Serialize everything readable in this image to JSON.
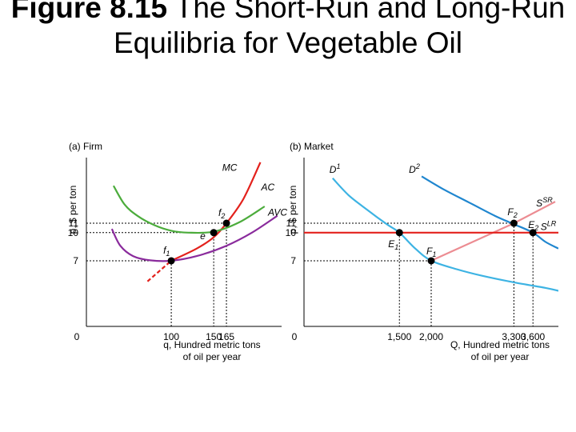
{
  "slide": {
    "title_bold": "Figure 8.15",
    "title_rest": "The Short-Run and Long-Run Equilibria for Vegetable Oil"
  },
  "colors": {
    "red": "#e3211c",
    "green": "#4cac3c",
    "purple": "#8a2b9c",
    "light_blue": "#3db3e3",
    "dark_blue": "#1f86cf",
    "pink": "#ec8c92",
    "axis": "#000000"
  },
  "chart_data": [
    {
      "type": "line",
      "panel_label": "(a) Firm",
      "ylabel": "p, $ per ton",
      "xlabel_line1": "q, Hundred metric tons",
      "xlabel_line2": "of oil per year",
      "x_ticks": [
        "0",
        "100",
        "150",
        "165"
      ],
      "y_ticks": [
        "7",
        "10",
        "11"
      ],
      "xlim": [
        0,
        230
      ],
      "ylim": [
        0,
        18
      ],
      "series": [
        {
          "name": "MC",
          "color_key": "red",
          "x": [
            100,
            130,
            150,
            165,
            185,
            205
          ],
          "y": [
            7,
            8.3,
            9.5,
            11,
            13.6,
            17.5
          ]
        },
        {
          "name": "AC",
          "color_key": "green",
          "x": [
            32,
            45,
            60,
            80,
            100,
            120,
            150,
            180,
            210
          ],
          "y": [
            15,
            13,
            11.8,
            10.8,
            10.2,
            10.0,
            10.1,
            11.1,
            12.8
          ]
        },
        {
          "name": "AVC",
          "color_key": "purple",
          "x": [
            30,
            40,
            55,
            75,
            100,
            130,
            165,
            195,
            225
          ],
          "y": [
            10.4,
            8.6,
            7.5,
            7.05,
            7.0,
            7.5,
            8.6,
            10.0,
            11.8
          ]
        }
      ],
      "extension": {
        "name": "MC (dashed)",
        "color_key": "red",
        "x": [
          72,
          100
        ],
        "y": [
          4.8,
          7
        ]
      },
      "points": [
        {
          "label": "f1",
          "x": 100,
          "y": 7
        },
        {
          "label": "e",
          "x": 150,
          "y": 10
        },
        {
          "label": "f2",
          "x": 165,
          "y": 11
        }
      ]
    },
    {
      "type": "line",
      "panel_label": "(b) Market",
      "ylabel": "p, $ per ton",
      "xlabel_line1": "Q, Hundred metric tons",
      "xlabel_line2": "of oil per year",
      "x_ticks": [
        "0",
        "1,500",
        "2,000",
        "3,300",
        "3,600"
      ],
      "y_ticks": [
        "7",
        "10",
        "11"
      ],
      "xlim": [
        0,
        4000
      ],
      "ylim": [
        0,
        18
      ],
      "series": [
        {
          "name": "D1",
          "color_key": "light_blue",
          "x": [
            450,
            700,
            1000,
            1300,
            1500,
            1750,
            2000,
            2400,
            2800,
            3300,
            3800,
            4000
          ],
          "y": [
            15.8,
            14,
            12.4,
            10.9,
            10,
            8.3,
            7,
            6.1,
            5.4,
            4.7,
            4.1,
            3.8
          ]
        },
        {
          "name": "D2",
          "color_key": "dark_blue",
          "x": [
            1850,
            2200,
            2600,
            3000,
            3300,
            3600,
            3800,
            4000
          ],
          "y": [
            16,
            14.6,
            13.2,
            11.8,
            10.9,
            10,
            9.0,
            8.3
          ]
        },
        {
          "name": "SSR",
          "color_key": "pink",
          "x": [
            2000,
            3300,
            3950
          ],
          "y": [
            7,
            11,
            13.3
          ]
        },
        {
          "name": "SLR",
          "color_key": "red",
          "x": [
            0,
            4000
          ],
          "y": [
            10,
            10
          ]
        }
      ],
      "points": [
        {
          "label": "E1",
          "x": 1500,
          "y": 10
        },
        {
          "label": "F1",
          "x": 2000,
          "y": 7
        },
        {
          "label": "F2",
          "x": 3300,
          "y": 11
        },
        {
          "label": "E2",
          "x": 3600,
          "y": 10
        }
      ]
    }
  ]
}
